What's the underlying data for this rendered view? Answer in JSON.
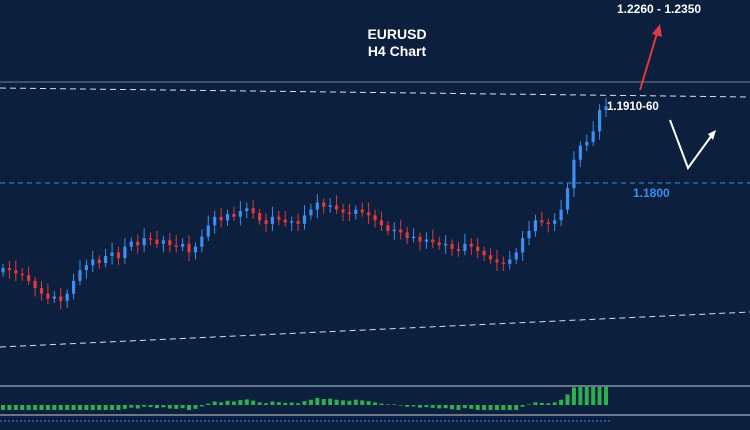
{
  "chart_data": {
    "type": "candlestick",
    "title": "EURUSD",
    "subtitle": "H4 Chart",
    "xlabel": "",
    "ylabel": "",
    "grid": false,
    "colors": {
      "background": "#0c1f3d",
      "bull": "#3d8ef0",
      "bear": "#e0393e",
      "level_line": "#3d8ef0",
      "trend_line": "#d9dee8",
      "target_arrow": "#e0393e",
      "scenario_arrow": "#ffffff",
      "histogram": "#2fae52"
    },
    "levels": [
      {
        "label": "1.1800",
        "price": 1.18
      },
      {
        "label": "1.1910-60",
        "price": 1.1935
      }
    ],
    "annotations": [
      {
        "label": "1.2260 - 1.2350",
        "meaning": "target"
      }
    ],
    "ohlc_close": [
      1.1708,
      1.1705,
      1.17,
      1.1698,
      1.169,
      1.168,
      1.1672,
      1.1665,
      1.1668,
      1.1662,
      1.1672,
      1.169,
      1.1705,
      1.1712,
      1.172,
      1.1715,
      1.1725,
      1.173,
      1.1722,
      1.1738,
      1.1745,
      1.174,
      1.175,
      1.1748,
      1.1742,
      1.1747,
      1.174,
      1.1738,
      1.1742,
      1.173,
      1.1738,
      1.1752,
      1.1768,
      1.178,
      1.1775,
      1.1784,
      1.178,
      1.1788,
      1.1792,
      1.1785,
      1.1775,
      1.177,
      1.178,
      1.1776,
      1.1772,
      1.1774,
      1.177,
      1.1782,
      1.179,
      1.18,
      1.1794,
      1.1796,
      1.179,
      1.1786,
      1.1784,
      1.179,
      1.1786,
      1.1782,
      1.1775,
      1.1768,
      1.176,
      1.1762,
      1.1758,
      1.175,
      1.1752,
      1.1745,
      1.1748,
      1.1744,
      1.174,
      1.1742,
      1.1735,
      1.1732,
      1.1742,
      1.1738,
      1.1732,
      1.1726,
      1.172,
      1.1716,
      1.1714,
      1.172,
      1.173,
      1.175,
      1.176,
      1.1775,
      1.1772,
      1.177,
      1.1775,
      1.179,
      1.182,
      1.186,
      1.188,
      1.1885,
      1.19,
      1.193,
      1.1935
    ]
  }
}
